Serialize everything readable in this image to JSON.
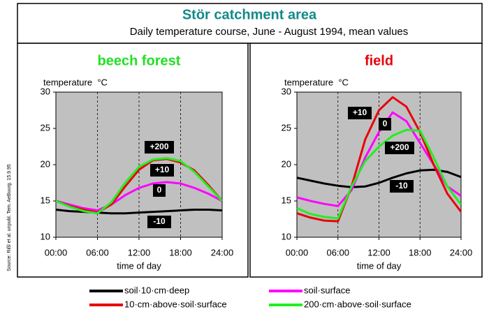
{
  "header": {
    "title": "Stör catchment area",
    "subtitle": "Daily temperature course, June - August 1994, mean values",
    "source": "Source: Rißl et al. unpubl. Tem. AeBuurg. 15.9.95"
  },
  "chart_data": [
    {
      "type": "line",
      "title": "beech forest",
      "title_color": "#22e022",
      "y_label": "temperature  °C",
      "x_label": "time of day",
      "x": [
        0,
        2,
        4,
        6,
        8,
        10,
        12,
        14,
        16,
        18,
        20,
        22,
        24
      ],
      "xlim": [
        0,
        24
      ],
      "ylim": [
        10,
        30
      ],
      "xticks": [
        {
          "value": 0,
          "label": "00:00"
        },
        {
          "value": 6,
          "label": "06:00"
        },
        {
          "value": 12,
          "label": "12:00"
        },
        {
          "value": 18,
          "label": "18:00"
        },
        {
          "value": 24,
          "label": "24:00"
        }
      ],
      "yticks": [
        10,
        15,
        20,
        25,
        30
      ],
      "series": [
        {
          "name": "soil·10·cm·deep",
          "label": "-10",
          "color": "#000000",
          "values": [
            13.8,
            13.6,
            13.5,
            13.4,
            13.3,
            13.3,
            13.4,
            13.5,
            13.6,
            13.7,
            13.8,
            13.8,
            13.7
          ]
        },
        {
          "name": "soil·surface",
          "label": "0",
          "color": "#ff00ff",
          "values": [
            15.0,
            14.5,
            14.0,
            13.7,
            14.5,
            15.8,
            16.8,
            17.4,
            17.6,
            17.4,
            16.8,
            16.0,
            15.0
          ]
        },
        {
          "name": "10·cm·above·soil·surface",
          "label": "+10",
          "color": "#e8000b",
          "values": [
            15.0,
            14.3,
            13.8,
            13.4,
            14.5,
            17.0,
            19.3,
            20.6,
            20.8,
            20.3,
            19.2,
            17.2,
            15.0
          ]
        },
        {
          "name": "200·cm·above·soil·surface",
          "label": "+200",
          "color": "#22ee22",
          "values": [
            15.0,
            14.2,
            13.6,
            13.3,
            14.8,
            17.5,
            19.7,
            20.7,
            20.9,
            20.5,
            19.0,
            17.0,
            15.0
          ]
        }
      ]
    },
    {
      "type": "line",
      "title": "field",
      "title_color": "#e8000b",
      "y_label": "temperature  °C",
      "x_label": "time of day",
      "x": [
        0,
        2,
        4,
        6,
        8,
        10,
        12,
        14,
        16,
        18,
        20,
        22,
        24
      ],
      "xlim": [
        0,
        24
      ],
      "ylim": [
        10,
        30
      ],
      "xticks": [
        {
          "value": 0,
          "label": "00:00"
        },
        {
          "value": 6,
          "label": "06:00"
        },
        {
          "value": 12,
          "label": "12:00"
        },
        {
          "value": 18,
          "label": "18:00"
        },
        {
          "value": 24,
          "label": "24:00"
        }
      ],
      "yticks": [
        10,
        15,
        20,
        25,
        30
      ],
      "series": [
        {
          "name": "soil·10·cm·deep",
          "label": "-10",
          "color": "#000000",
          "values": [
            18.2,
            17.8,
            17.4,
            17.1,
            16.9,
            17.0,
            17.5,
            18.2,
            18.8,
            19.2,
            19.3,
            19.0,
            18.3
          ]
        },
        {
          "name": "soil·surface",
          "label": "0",
          "color": "#ff00ff",
          "values": [
            15.5,
            15.0,
            14.6,
            14.3,
            16.5,
            21.0,
            24.5,
            27.2,
            26.0,
            23.0,
            20.0,
            17.0,
            15.7
          ]
        },
        {
          "name": "10·cm·above·soil·surface",
          "label": "+10",
          "color": "#e8000b",
          "values": [
            13.3,
            12.7,
            12.3,
            12.2,
            17.0,
            23.5,
            27.5,
            29.3,
            28.0,
            24.5,
            20.0,
            16.0,
            13.5
          ]
        },
        {
          "name": "200·cm·above·soil·surface",
          "label": "+200",
          "color": "#22ee22",
          "values": [
            14.0,
            13.2,
            12.8,
            12.6,
            17.0,
            20.5,
            22.5,
            24.0,
            24.8,
            24.7,
            21.0,
            17.0,
            14.5
          ]
        }
      ]
    }
  ]
}
